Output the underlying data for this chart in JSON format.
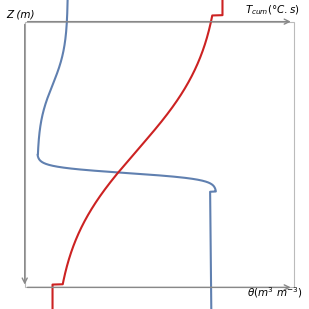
{
  "background_color": "#ffffff",
  "border_color": "#bbbbbb",
  "blue_color": "#6080b0",
  "red_color": "#cc2222",
  "axis_color": "#888888",
  "figsize": [
    3.09,
    3.09
  ],
  "dpi": 100,
  "ylabel": "Z (m)",
  "xlabel_bottom": "θ(m³ m⁻³)",
  "xlabel_top": "T_{cum}(°C.s)"
}
